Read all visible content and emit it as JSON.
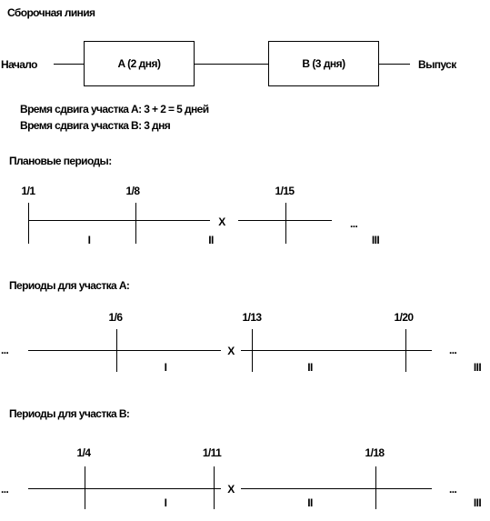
{
  "assembly": {
    "title": "Сборочная линия",
    "start_label": "Начало",
    "box_a": "A (2 дня)",
    "box_b": "B (3 дня)",
    "output_label": "Выпуск"
  },
  "shifts": {
    "line_a": "Время сдвига участка A: 3 + 2 = 5 дней",
    "line_b": "Время сдвига участка B: 3 дня"
  },
  "planned": {
    "title": "Плановые периоды:",
    "dates": [
      "1/1",
      "1/8",
      "1/15"
    ],
    "ellipsis": "...",
    "break_mark": "X",
    "periods": [
      "I",
      "II",
      "III"
    ]
  },
  "section_a": {
    "title": "Периоды для участка A:",
    "dates": [
      "1/6",
      "1/13",
      "1/20"
    ],
    "ellipsis_left": "...",
    "ellipsis_right": "...",
    "break_mark": "X",
    "periods": [
      "I",
      "II",
      "III"
    ]
  },
  "section_b": {
    "title": "Периоды для участка B:",
    "dates": [
      "1/4",
      "1/11",
      "1/18"
    ],
    "ellipsis_left": "...",
    "ellipsis_right": "...",
    "break_mark": "X",
    "periods": [
      "I",
      "II",
      "III"
    ]
  }
}
